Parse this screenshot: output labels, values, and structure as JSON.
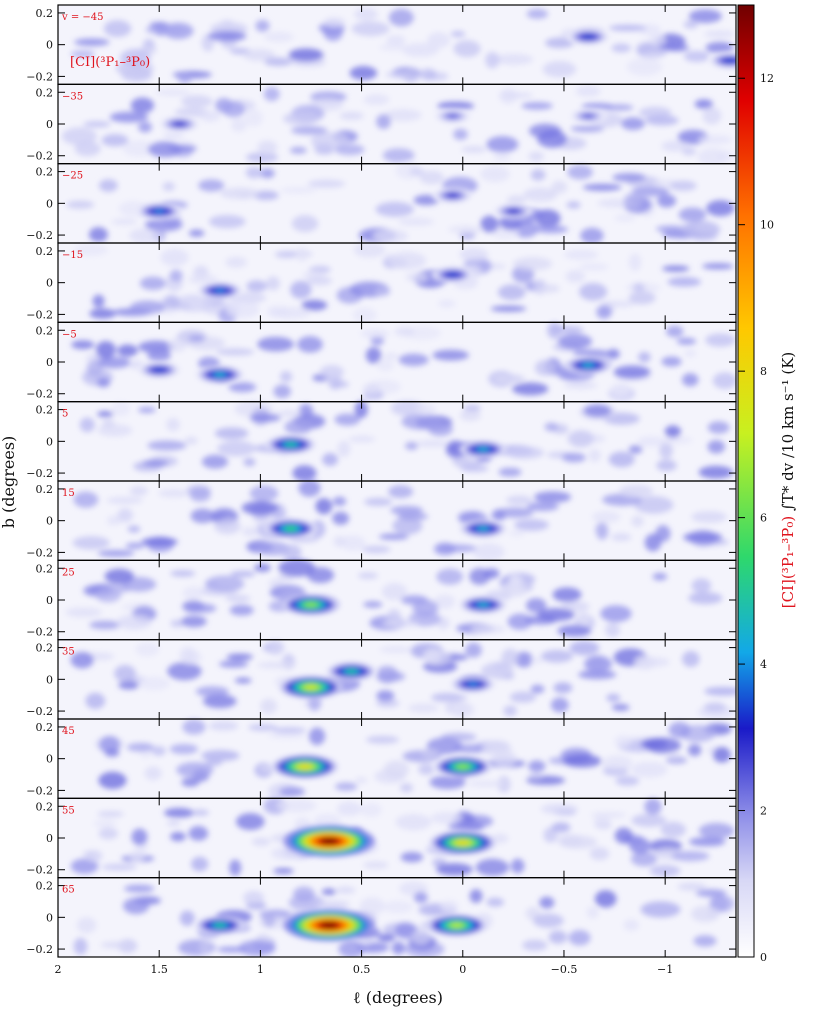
{
  "figure": {
    "panel_velocity_labels": [
      "v = −45",
      "−35",
      "−25",
      "−15",
      "−5",
      "5",
      "15",
      "25",
      "35",
      "45",
      "55",
      "65"
    ],
    "line_label": "[CI](³P₁–³P₀)",
    "b_ticks": [
      "0.2",
      "0",
      "−0.2"
    ],
    "l_ticks": [
      "2",
      "1.5",
      "1",
      "0.5",
      "0",
      "−0.5",
      "−1"
    ],
    "xlabel": "ℓ (degrees)",
    "ylabel": "b (degrees)",
    "colorbar_title_red": "[CI](³P₁–³P₀)",
    "colorbar_title_black": " ∫T* dv /10 km s⁻¹ (K)",
    "colorbar_ticks": [
      "0",
      "2",
      "4",
      "6",
      "8",
      "10",
      "12"
    ],
    "colormap": [
      "#ffffff",
      "#8d8de8",
      "#1a1ac8",
      "#12a8e8",
      "#2ed86c",
      "#c8f020",
      "#ffc800",
      "#ff7000",
      "#e00000",
      "#700000"
    ]
  },
  "chart_data": {
    "type": "heatmap",
    "title": "",
    "xlabel": "ℓ (degrees)",
    "ylabel": "b (degrees)",
    "xlim": [
      2,
      -1.35
    ],
    "ylim": [
      -0.25,
      0.25
    ],
    "colorbar_range": [
      0,
      13
    ],
    "colorbar_label": "[CI](³P₁–³P₀) ∫T* dv /10 km s⁻¹ (K)",
    "panels_velocity_kms": [
      -45,
      -35,
      -25,
      -15,
      -5,
      5,
      15,
      25,
      35,
      45,
      55,
      65
    ],
    "features": [
      {
        "velocity": -45,
        "l": -0.62,
        "b": 0.05,
        "peak_K": 3.5
      },
      {
        "velocity": -45,
        "l": -1.32,
        "b": -0.1,
        "peak_K": 3.5
      },
      {
        "velocity": -35,
        "l": 1.4,
        "b": 0.0,
        "peak_K": 3.0
      },
      {
        "velocity": -35,
        "l": 0.05,
        "b": 0.05,
        "peak_K": 2.5
      },
      {
        "velocity": -35,
        "l": -0.62,
        "b": 0.05,
        "peak_K": 2.5
      },
      {
        "velocity": -25,
        "l": 1.5,
        "b": -0.05,
        "peak_K": 4.0
      },
      {
        "velocity": -25,
        "l": 0.05,
        "b": 0.05,
        "peak_K": 3.0
      },
      {
        "velocity": -25,
        "l": -0.25,
        "b": -0.05,
        "peak_K": 3.0
      },
      {
        "velocity": -15,
        "l": 1.2,
        "b": -0.05,
        "peak_K": 4.0
      },
      {
        "velocity": -15,
        "l": 0.05,
        "b": 0.05,
        "peak_K": 3.5
      },
      {
        "velocity": -5,
        "l": 1.5,
        "b": -0.05,
        "peak_K": 3.5
      },
      {
        "velocity": -5,
        "l": 1.2,
        "b": -0.08,
        "peak_K": 4.5
      },
      {
        "velocity": -5,
        "l": -0.62,
        "b": -0.02,
        "peak_K": 4.5
      },
      {
        "velocity": 5,
        "l": 0.85,
        "b": -0.02,
        "peak_K": 5.0
      },
      {
        "velocity": 5,
        "l": -0.1,
        "b": -0.05,
        "peak_K": 4.5
      },
      {
        "velocity": 15,
        "l": 0.85,
        "b": -0.05,
        "peak_K": 5.5
      },
      {
        "velocity": 15,
        "l": -0.1,
        "b": -0.05,
        "peak_K": 4.5
      },
      {
        "velocity": 25,
        "l": 0.75,
        "b": -0.03,
        "peak_K": 6.5
      },
      {
        "velocity": 25,
        "l": -0.1,
        "b": -0.03,
        "peak_K": 4.5
      },
      {
        "velocity": 35,
        "l": 0.75,
        "b": -0.05,
        "peak_K": 7.5
      },
      {
        "velocity": 35,
        "l": 0.55,
        "b": 0.05,
        "peak_K": 5.0
      },
      {
        "velocity": 35,
        "l": -0.05,
        "b": -0.03,
        "peak_K": 4.0
      },
      {
        "velocity": 45,
        "l": 0.78,
        "b": -0.05,
        "peak_K": 8.0
      },
      {
        "velocity": 45,
        "l": 0.0,
        "b": -0.05,
        "peak_K": 6.5
      },
      {
        "velocity": 55,
        "l": 0.66,
        "b": -0.02,
        "peak_K": 13.0
      },
      {
        "velocity": 55,
        "l": 0.0,
        "b": -0.03,
        "peak_K": 8.0
      },
      {
        "velocity": 65,
        "l": 0.66,
        "b": -0.05,
        "peak_K": 13.0
      },
      {
        "velocity": 65,
        "l": 0.03,
        "b": -0.05,
        "peak_K": 7.0
      },
      {
        "velocity": 65,
        "l": 1.2,
        "b": -0.05,
        "peak_K": 5.0
      }
    ]
  }
}
